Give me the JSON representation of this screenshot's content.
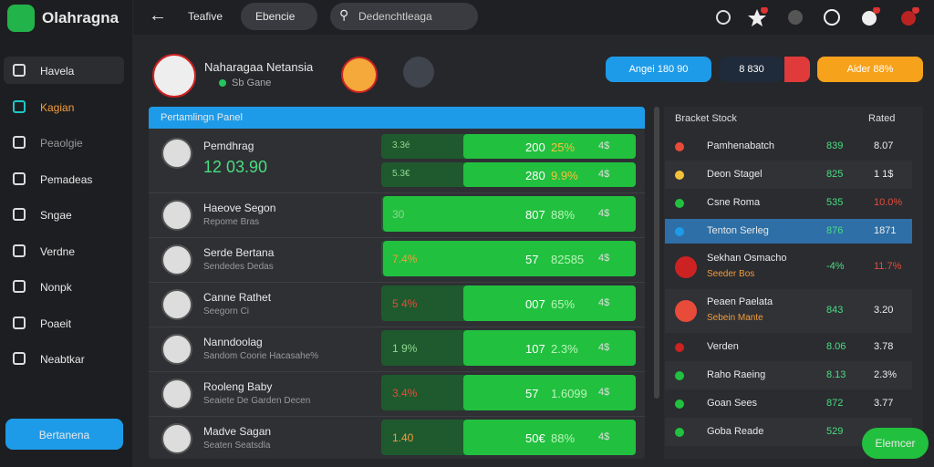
{
  "app": {
    "name": "Olahragna"
  },
  "sidebar": {
    "items": [
      "Havela",
      "Kagian",
      "Peaolgie",
      "Pemadeas",
      "Sngae",
      "Verdne",
      "Nonpk",
      "Poaeit",
      "Neabtkar"
    ],
    "button": "Bertanena"
  },
  "topbar": {
    "title": "Teafive",
    "tab": "Ebencie",
    "search": "Dedenchtleaga"
  },
  "header": {
    "name": "Naharagaa Netansia",
    "status": "Sb Gane",
    "buttons": [
      "Angei 180 90",
      "8 830",
      "Aider 88%"
    ]
  },
  "panel": {
    "title": "Pertamlingn Panel",
    "rows": [
      {
        "name": "Pemdhrag",
        "sub": "12 03.90",
        "lines": [
          {
            "left": "3.3é",
            "a": "200",
            "b": "25%",
            "c": "4$"
          },
          {
            "left": "5.3€",
            "a": "280",
            "b": "9.9%",
            "c": "4$"
          }
        ]
      },
      {
        "name": "Haeove Segon",
        "sub": "Repome Bras",
        "lines": [
          {
            "left": "30",
            "a": "807",
            "b": "88%",
            "c": "4$"
          }
        ]
      },
      {
        "name": "Serde Bertana",
        "sub": "Sendedes Dedas",
        "lines": [
          {
            "left": "7.4%",
            "a": "57",
            "b": "82585",
            "c": "4$"
          }
        ]
      },
      {
        "name": "Canne Rathet",
        "sub": "Seegorn Ci",
        "lines": [
          {
            "left": "5 4%",
            "a": "007",
            "b": "65%",
            "c": "4$"
          }
        ]
      },
      {
        "name": "Nanndoolag",
        "sub": "Sandom Coorie Hacasahe%",
        "lines": [
          {
            "left": "1 9%",
            "a": "107",
            "b": "2.3%",
            "c": "4$"
          }
        ]
      },
      {
        "name": "Rooleng Baby",
        "sub": "Seaiete De Garden Decen",
        "lines": [
          {
            "left": "3.4%",
            "a": "57",
            "b": "1.6099",
            "c": "4$"
          }
        ]
      },
      {
        "name": "Madve Sagan",
        "sub": "Seaten Seatsdla",
        "lines": [
          {
            "left": "1.40",
            "a": "50€",
            "b": "88%",
            "c": "4$"
          }
        ]
      }
    ]
  },
  "side_table": {
    "headers": [
      "Bracket Stock",
      "Rated"
    ],
    "rows": [
      {
        "name": "Pamhenabatch",
        "v1": "839",
        "v2": "8.07"
      },
      {
        "name": "Deon Stagel",
        "v1": "825",
        "v2": "1 1$"
      },
      {
        "name": "Csne Roma",
        "v1": "535",
        "v2": "10.0%"
      },
      {
        "name": "Tenton Serleg",
        "v1": "876",
        "v2": "1871"
      },
      {
        "name": "Sekhan Osmacho",
        "sub": "Seeder Bos",
        "v1": "-4%",
        "v2": "11.7%"
      },
      {
        "name": "Peaen Paelata",
        "sub": "Sebein Mante",
        "v1": "843",
        "v2": "3.20"
      },
      {
        "name": "Verden",
        "v1": "8.06",
        "v2": "3.78"
      },
      {
        "name": "Raho Raeing",
        "v1": "8.13",
        "v2": "2.3%"
      },
      {
        "name": "Goan Sees",
        "v1": "872",
        "v2": "3.77"
      },
      {
        "name": "Goba Reade",
        "v1": "529"
      }
    ],
    "button": "Elemcer"
  }
}
